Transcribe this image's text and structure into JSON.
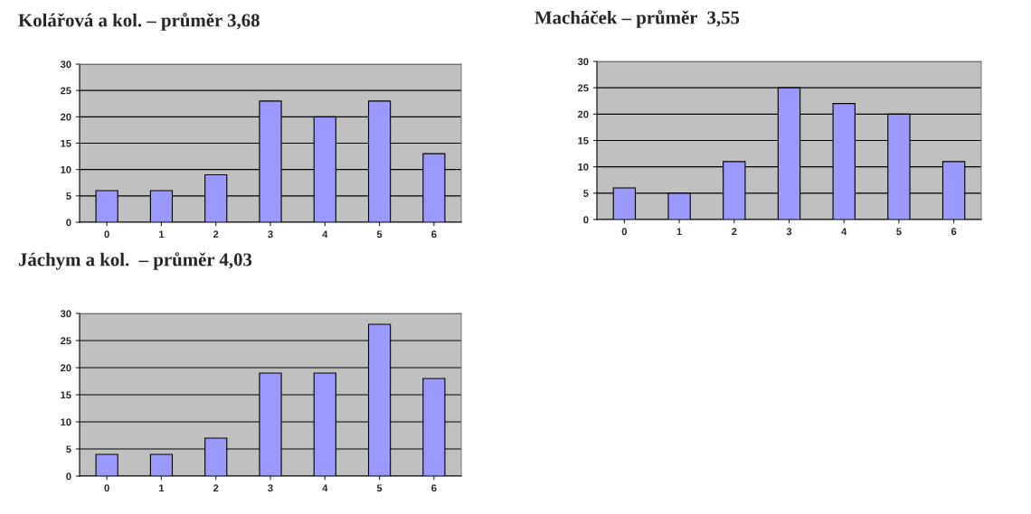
{
  "chart_data": [
    {
      "type": "bar",
      "title": "Kolářová a kol. – průměr 3,68",
      "categories": [
        "0",
        "1",
        "2",
        "3",
        "4",
        "5",
        "6"
      ],
      "values": [
        6,
        6,
        9,
        23,
        20,
        23,
        13
      ],
      "color": "#9999ff",
      "ylim": [
        0,
        30
      ],
      "yticks": [
        0,
        5,
        10,
        15,
        20,
        25,
        30
      ],
      "grid": "y"
    },
    {
      "type": "bar",
      "title": "Macháček – průměr  3,55",
      "categories": [
        "0",
        "1",
        "2",
        "3",
        "4",
        "5",
        "6"
      ],
      "values": [
        6,
        5,
        11,
        25,
        22,
        20,
        11
      ],
      "color": "#9999ff",
      "ylim": [
        0,
        30
      ],
      "yticks": [
        0,
        5,
        10,
        15,
        20,
        25,
        30
      ],
      "grid": "y"
    },
    {
      "type": "bar",
      "title": "Jáchym a kol.  – průměr 4,03",
      "categories": [
        "0",
        "1",
        "2",
        "3",
        "4",
        "5",
        "6"
      ],
      "values": [
        4,
        4,
        7,
        19,
        19,
        28,
        18
      ],
      "color": "#9999ff",
      "ylim": [
        0,
        30
      ],
      "yticks": [
        0,
        5,
        10,
        15,
        20,
        25,
        30
      ],
      "grid": "y"
    }
  ]
}
